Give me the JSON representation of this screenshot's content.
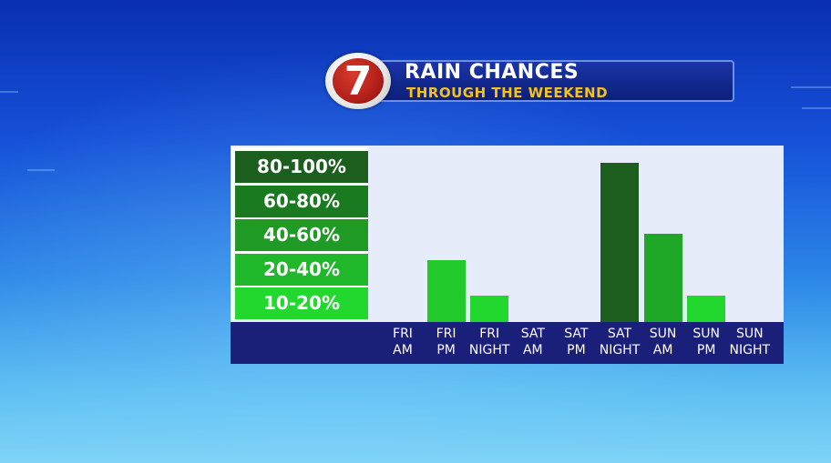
{
  "header": {
    "logo_number": "7",
    "title": "RAIN CHANCES",
    "subtitle": "THROUGH THE WEEKEND"
  },
  "colors": {
    "title_sub": "#f6c21a",
    "panel": "#e6ecfa",
    "axis_strip": "#1a1f7a"
  },
  "chart_data": {
    "type": "bar",
    "title": "RAIN CHANCES",
    "subtitle": "THROUGH THE WEEKEND",
    "categories": [
      "FRI\nAM",
      "FRI\nPM",
      "FRI\nNIGHT",
      "SAT\nAM",
      "SAT\nPM",
      "SAT\nNIGHT",
      "SUN\nAM",
      "SUN\nPM",
      "SUN\nNIGHT"
    ],
    "value_bands": [
      "80-100%",
      "60-80%",
      "40-60%",
      "20-40%",
      "10-20%"
    ],
    "band_colors": [
      "#1c5e1e",
      "#197a1f",
      "#1e9a25",
      "#1fb82a",
      "#22d82e"
    ],
    "values": [
      0,
      35,
      15,
      0,
      0,
      90,
      50,
      15,
      0
    ],
    "bar_colors": [
      "#22d82e",
      "#22c92b",
      "#22d82e",
      "#22d82e",
      "#22d82e",
      "#1c5e1e",
      "#1fa827",
      "#22d82e",
      "#22d82e"
    ],
    "ylim": [
      0,
      100
    ],
    "xlabel": "",
    "ylabel": ""
  }
}
